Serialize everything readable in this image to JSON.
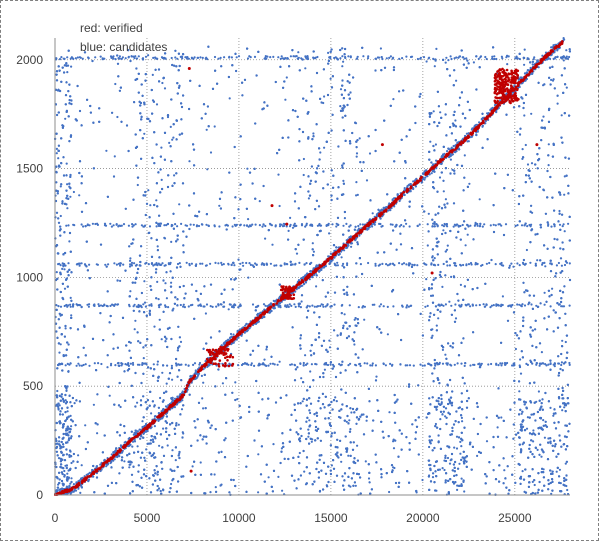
{
  "chart_data": {
    "type": "scatter",
    "title": "",
    "xlabel": "",
    "ylabel": "",
    "xlim": [
      0,
      28000
    ],
    "ylim": [
      0,
      2100
    ],
    "xticks": [
      0,
      5000,
      10000,
      15000,
      20000,
      25000
    ],
    "yticks": [
      0,
      500,
      1000,
      1500,
      2000
    ],
    "xtick_labels": [
      "0",
      "5000",
      "10000",
      "15000",
      "20000",
      "25000"
    ],
    "ytick_labels": [
      "0",
      "500",
      "1000",
      "1500",
      "2000"
    ],
    "grid": "dotted",
    "legend_placement": "top-left",
    "legend_lines": [
      "red:  verified",
      "blue: candidates"
    ],
    "series": [
      {
        "name": "verified",
        "color": "#c00000",
        "description_points": [
          [
            0,
            0
          ],
          [
            1000,
            30
          ],
          [
            2000,
            95
          ],
          [
            3000,
            165
          ],
          [
            4000,
            240
          ],
          [
            5000,
            310
          ],
          [
            6000,
            385
          ],
          [
            7000,
            460
          ],
          [
            7300,
            520
          ],
          [
            8000,
            585
          ],
          [
            9000,
            665
          ],
          [
            10000,
            740
          ],
          [
            11000,
            810
          ],
          [
            12000,
            880
          ],
          [
            13000,
            950
          ],
          [
            14000,
            1020
          ],
          [
            15000,
            1090
          ],
          [
            16000,
            1165
          ],
          [
            17000,
            1240
          ],
          [
            18000,
            1310
          ],
          [
            19000,
            1390
          ],
          [
            20000,
            1460
          ],
          [
            21000,
            1540
          ],
          [
            22000,
            1610
          ],
          [
            23000,
            1690
          ],
          [
            24000,
            1780
          ],
          [
            25000,
            1870
          ],
          [
            26000,
            1960
          ],
          [
            27000,
            2040
          ],
          [
            27600,
            2080
          ]
        ]
      },
      {
        "name": "candidates",
        "color": "#4472c4",
        "x_range": [
          0,
          28000
        ],
        "y_range": [
          0,
          2100
        ]
      }
    ]
  }
}
